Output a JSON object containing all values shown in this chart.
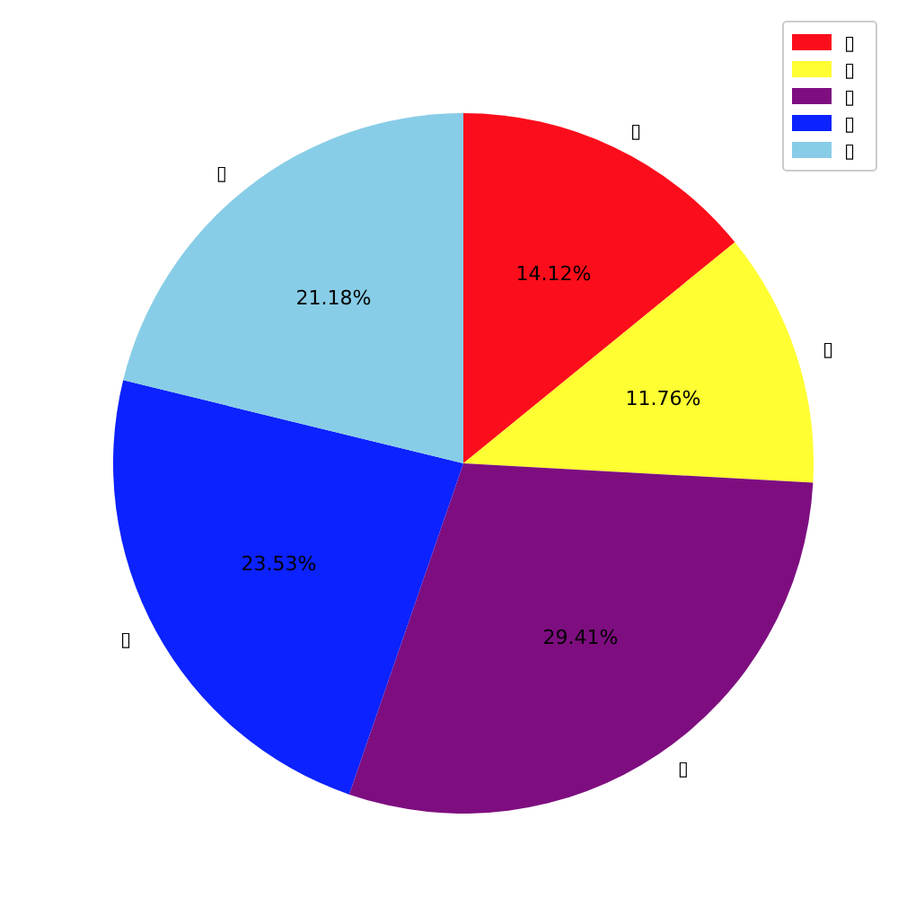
{
  "chart_data": {
    "type": "pie",
    "categories": [
      "▯",
      "▯",
      "▯",
      "▯",
      "▯"
    ],
    "values": [
      14.12,
      11.76,
      29.41,
      23.53,
      21.18
    ],
    "value_labels": [
      "14.12%",
      "11.76%",
      "29.41%",
      "23.53%",
      "21.18%"
    ],
    "colors": [
      "#fc0d1b",
      "#fefe33",
      "#7e0e80",
      "#0c22fe",
      "#88cde7"
    ],
    "legend": "top right"
  }
}
